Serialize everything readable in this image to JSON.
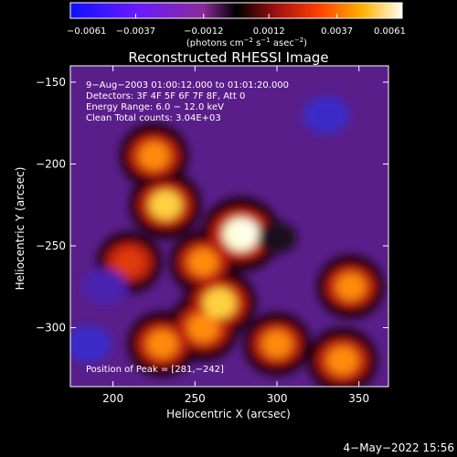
{
  "chart_data": {
    "type": "heatmap",
    "title": "Reconstructed RHESSI Image",
    "xlabel": "Heliocentric X (arcsec)",
    "ylabel": "Heliocentric Y (arcsec)",
    "xlim": [
      174,
      368
    ],
    "ylim": [
      -336,
      -140
    ],
    "x_ticks": [
      200,
      250,
      300,
      350
    ],
    "x_tick_labels": [
      "200",
      "250",
      "300",
      "350"
    ],
    "y_ticks": [
      -150,
      -200,
      -250,
      -300
    ],
    "y_tick_labels": [
      "−150",
      "−200",
      "−250",
      "−300"
    ],
    "colorbar": {
      "range": [
        -0.0061,
        0.0061
      ],
      "ticks": [
        -0.0061,
        -0.0037,
        -0.0012,
        0.0012,
        0.0037,
        0.0061
      ],
      "tick_labels": [
        "−0.0061",
        "−0.0037",
        "−0.0012",
        "0.0012",
        "0.0037",
        "0.0061"
      ],
      "label_main": "(photons cm",
      "label_sup1": "−2",
      "label_mid": " s",
      "label_sup2": "−1",
      "label_mid2": " asec",
      "label_sup3": "−2",
      "label_end": ")"
    },
    "annotations": [
      "9−Aug−2003 01:00:12.000 to 01:01:20.000",
      "Detectors: 3F 4F 5F 6F 7F 8F, Att 0",
      "Energy Range: 6.0 − 12.0 keV",
      "Clean     Total counts: 3.04E+03",
      "Position of Peak = [281,−242]"
    ],
    "peak": {
      "x": 281,
      "y": -242
    },
    "hot_regions": [
      {
        "x": 278,
        "y": -243,
        "value": 0.006
      },
      {
        "x": 232,
        "y": -225,
        "value": 0.0045
      },
      {
        "x": 225,
        "y": -195,
        "value": 0.0038
      },
      {
        "x": 255,
        "y": -260,
        "value": 0.0035
      },
      {
        "x": 255,
        "y": -300,
        "value": 0.0042
      },
      {
        "x": 265,
        "y": -285,
        "value": 0.0048
      },
      {
        "x": 230,
        "y": -310,
        "value": 0.0038
      },
      {
        "x": 300,
        "y": -310,
        "value": 0.0035
      },
      {
        "x": 340,
        "y": -320,
        "value": 0.004
      },
      {
        "x": 345,
        "y": -275,
        "value": 0.0035
      },
      {
        "x": 210,
        "y": -260,
        "value": 0.003
      }
    ],
    "cold_regions": [
      {
        "x": 330,
        "y": -170,
        "value": -0.003
      },
      {
        "x": 195,
        "y": -275,
        "value": -0.0025
      },
      {
        "x": 185,
        "y": -310,
        "value": -0.003
      },
      {
        "x": 300,
        "y": -245,
        "value": -0.0015
      }
    ],
    "timestamp": "4−May−2022 15:56"
  }
}
